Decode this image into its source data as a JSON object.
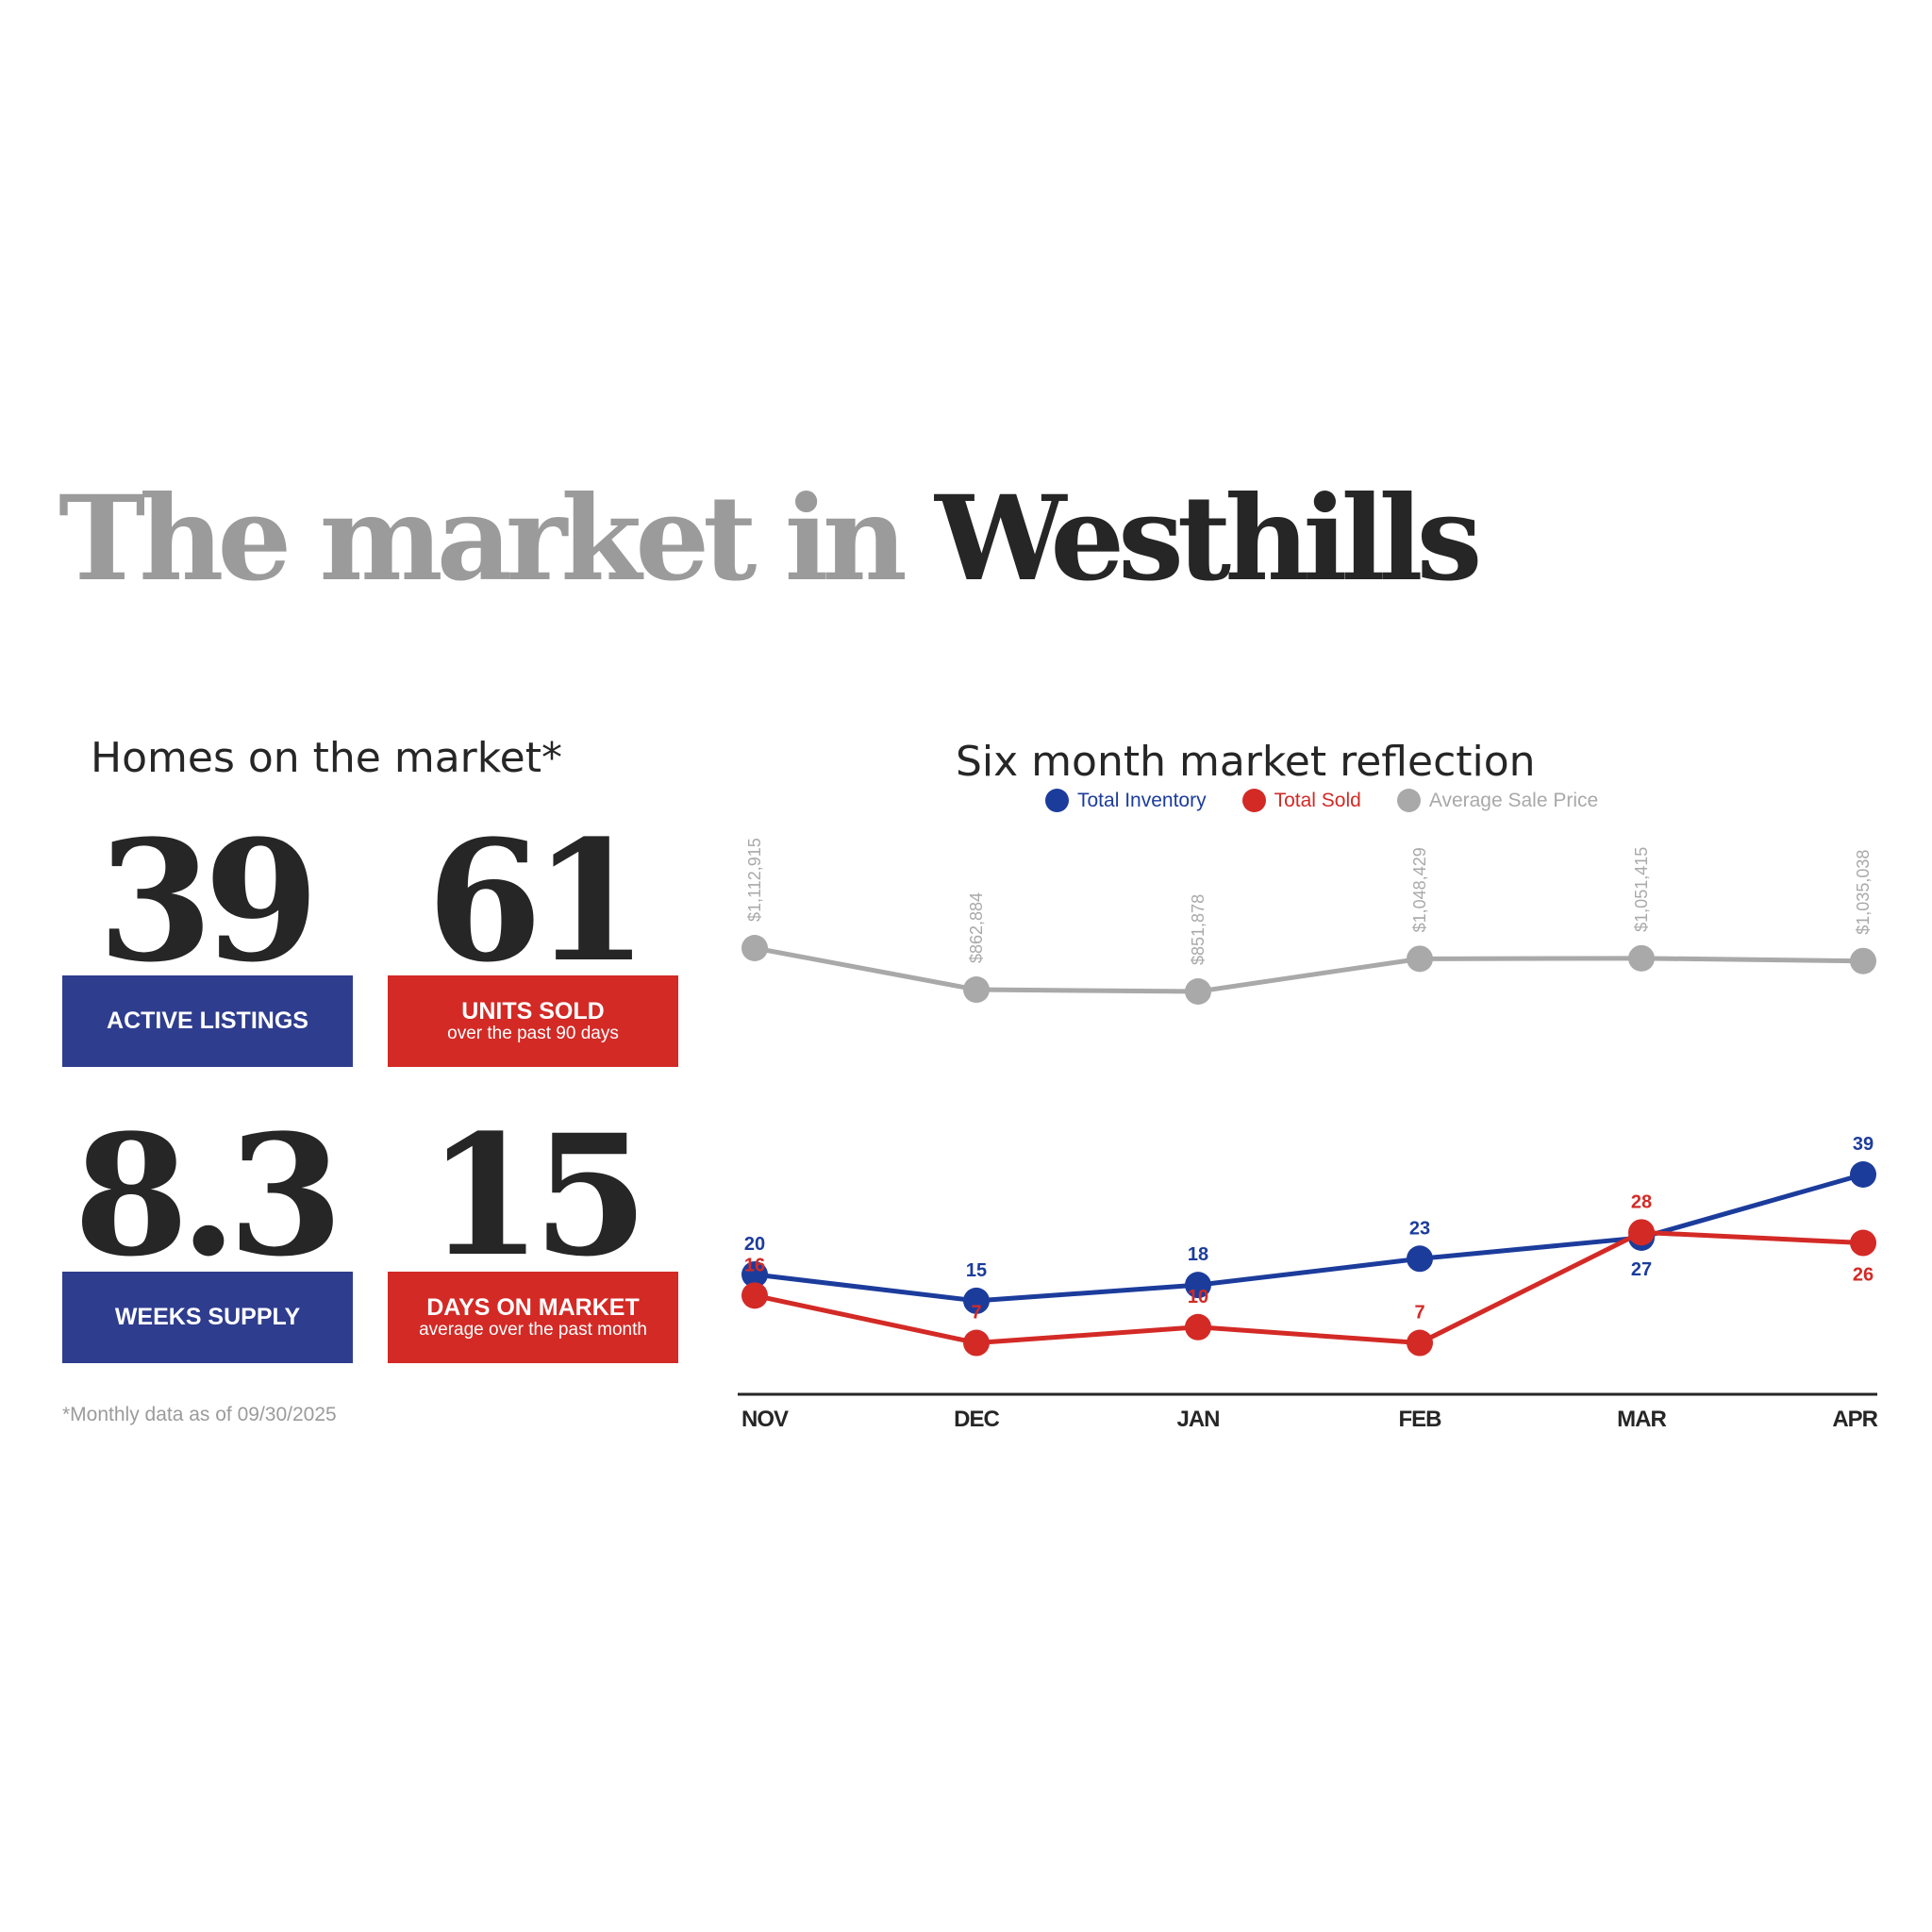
{
  "headline": {
    "part1": "The market in ",
    "part2": "Westhills"
  },
  "homes": {
    "title": "Homes on the market*",
    "stats": [
      {
        "value": "39",
        "label": "ACTIVE LISTINGS",
        "sub": "",
        "color": "#2e3d8e"
      },
      {
        "value": "61",
        "label": "UNITS SOLD",
        "sub": "over the past 90 days",
        "color": "#d32a26"
      },
      {
        "value": "8.3",
        "label": "WEEKS SUPPLY",
        "sub": "",
        "color": "#2e3d8e"
      },
      {
        "value": "15",
        "label": "DAYS ON MARKET",
        "sub": "average over the past month",
        "color": "#d32a26"
      }
    ],
    "footnote": "*Monthly data as of 09/30/2025"
  },
  "colors": {
    "inventory": "#1c3c9c",
    "sold": "#d32a26",
    "price": "#a9a9a9",
    "axis": "#262626"
  },
  "chart_data": {
    "type": "line",
    "title": "Six month market reflection",
    "categories": [
      "NOV",
      "DEC",
      "JAN",
      "FEB",
      "MAR",
      "APR"
    ],
    "legend_position": "top",
    "series": [
      {
        "name": "Total Inventory",
        "values": [
          20,
          15,
          18,
          23,
          27,
          39
        ],
        "labels": [
          "20",
          "15",
          "18",
          "23",
          "27",
          "39"
        ]
      },
      {
        "name": "Total Sold",
        "values": [
          16,
          7,
          10,
          7,
          28,
          26
        ],
        "labels": [
          "16",
          "7",
          "10",
          "7",
          "28",
          "26"
        ]
      },
      {
        "name": "Average Sale Price",
        "values": [
          1112915,
          862884,
          851878,
          1048429,
          1051415,
          1035038
        ],
        "labels": [
          "$1,112,915",
          "$862,884",
          "$851,878",
          "$1,048,429",
          "$1,051,415",
          "$1,035,038"
        ]
      }
    ]
  }
}
